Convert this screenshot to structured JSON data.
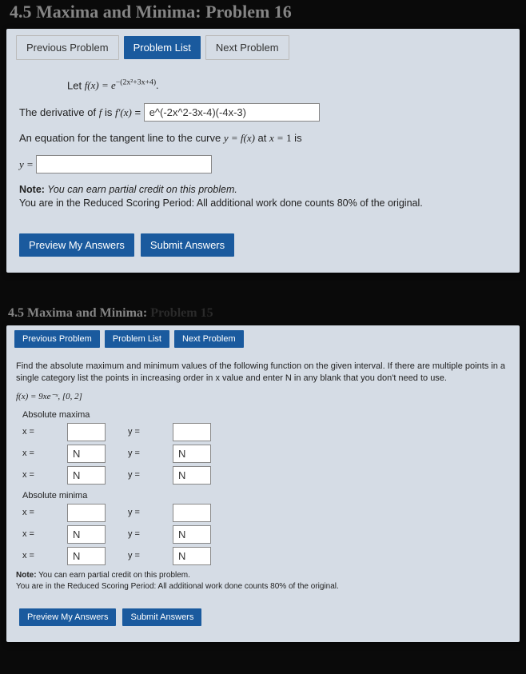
{
  "colors": {
    "card_bg": "#d5dce5",
    "btn_primary": "#1a5a9e",
    "btn_text": "#ffffff",
    "page_bg": "#0a0a0a",
    "text": "#222222",
    "faded": "#858585"
  },
  "p16": {
    "title_prefix": "4.5 Maxima and Minima:",
    "title_problem": "Problem 16",
    "nav": {
      "prev": "Previous Problem",
      "list": "Problem List",
      "next": "Next Problem"
    },
    "let_label": "Let ",
    "fn_def_html": "f(x) = e",
    "fn_exp": "−(2x²+3x+4)",
    "deriv_label_pre": "The derivative of ",
    "deriv_label_mid": " is ",
    "deriv_eq": " = ",
    "deriv_value": "e^(-2x^2-3x-4)(-4x-3)",
    "tangent_text_pre": "An equation for the tangent line to the curve ",
    "tangent_text_mid": " at ",
    "tangent_text_post": " is",
    "y_eq": "y = ",
    "y_value": "",
    "note_bold": "Note:",
    "note_line1": " You can earn partial credit on this problem.",
    "note_line2": "You are in the Reduced Scoring Period: All additional work done counts 80% of the original.",
    "preview": "Preview My Answers",
    "submit": "Submit Answers"
  },
  "p15": {
    "title_prefix": "4.5 Maxima and Minima:",
    "title_problem": "Problem 15",
    "nav": {
      "prev": "Previous Problem",
      "list": "Problem List",
      "next": "Next Problem"
    },
    "instr": "Find the absolute maximum and minimum values of the following function on the given interval. If there are multiple points in a single category list the points in increasing order in x value and enter N in any blank that you don't need to use.",
    "fn_line": "f(x) = 9xe⁻ˣ,  [0, 2]",
    "max_head": "Absolute maxima",
    "min_head": "Absolute minima",
    "rows_max": [
      {
        "x": "",
        "y": ""
      },
      {
        "x": "N",
        "y": "N"
      },
      {
        "x": "N",
        "y": "N"
      }
    ],
    "rows_min": [
      {
        "x": "",
        "y": ""
      },
      {
        "x": "N",
        "y": "N"
      },
      {
        "x": "N",
        "y": "N"
      }
    ],
    "xlbl": "x =",
    "ylbl": "y =",
    "note_bold": "Note:",
    "note_line1": " You can earn partial credit on this problem.",
    "note_line2": "You are in the Reduced Scoring Period: All additional work done counts 80% of the original.",
    "preview": "Preview My Answers",
    "submit": "Submit Answers"
  }
}
